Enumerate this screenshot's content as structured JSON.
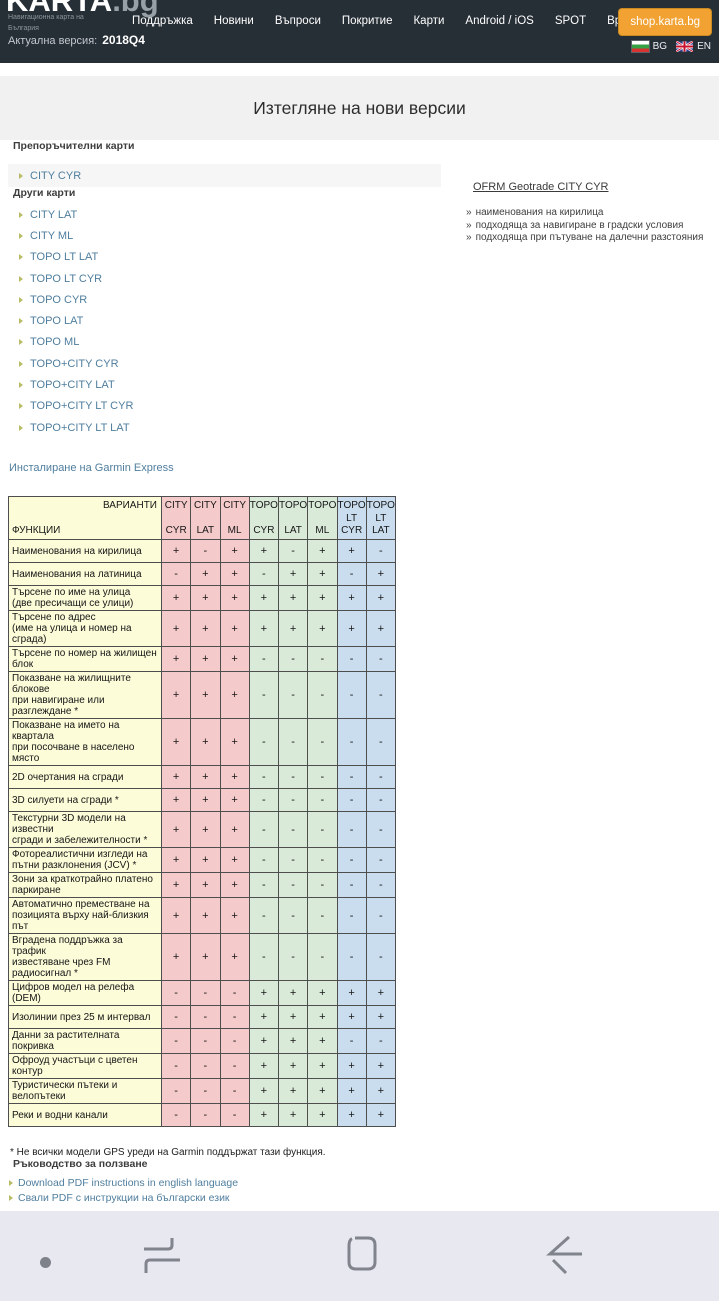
{
  "header": {
    "logo_main": "KARTA",
    "logo_suffix": ".bg",
    "tagline_line1": "Навигационна карта на",
    "tagline_line2": "България",
    "version_label": "Актуална версия:",
    "version_value": "2018Q4",
    "menu": [
      "Поддръжка",
      "Новини",
      "Въпроси",
      "Покритие",
      "Карти",
      "Android / iOS",
      "SPOT",
      "Връзка с нас"
    ],
    "shop_button_label": "shop.karta.bg",
    "languages": [
      {
        "code": "BG",
        "flag": "bulgaria-flag"
      },
      {
        "code": "EN",
        "flag": "uk-flag"
      }
    ]
  },
  "banner": {
    "title": "Изтегляне на нови версии"
  },
  "left_column": {
    "recommended_heading": "Препоръчителни карти",
    "recommended_maps": [
      "CITY CYR"
    ],
    "other_heading": "Други карти",
    "other_maps": [
      "CITY LAT",
      "CITY ML",
      "TOPO LT LAT",
      "TOPO LT CYR",
      "TOPO CYR",
      "TOPO LAT",
      "TOPO ML",
      "TOPO+CITY CYR",
      "TOPO+CITY LAT",
      "TOPO+CITY LT CYR",
      "TOPO+CITY LT LAT"
    ],
    "garmin_link_label": "Инсталиране на Garmin Express"
  },
  "right_column": {
    "selected_map_title": "OFRM Geotrade CITY CYR",
    "bullet_char": "»",
    "features": [
      "наименования на кирилица",
      "подходяща за навигиране в градски условия",
      "подходяща при пътуване на далечни разстояния"
    ]
  },
  "comparison_table": {
    "corner_top_label": "ВАРИАНТИ",
    "corner_bottom_label": "ФУНКЦИИ",
    "columns": [
      {
        "lines": [
          "CITY",
          "CYR"
        ],
        "group": "city"
      },
      {
        "lines": [
          "CITY",
          "LAT"
        ],
        "group": "city"
      },
      {
        "lines": [
          "CITY",
          "ML"
        ],
        "group": "city"
      },
      {
        "lines": [
          "TOPO",
          "CYR"
        ],
        "group": "topo"
      },
      {
        "lines": [
          "TOPO",
          "LAT"
        ],
        "group": "topo"
      },
      {
        "lines": [
          "TOPO",
          "ML"
        ],
        "group": "topo"
      },
      {
        "lines": [
          "TOPO",
          "LT",
          "CYR"
        ],
        "group": "topolt"
      },
      {
        "lines": [
          "TOPO",
          "LT",
          "LAT"
        ],
        "group": "topolt"
      }
    ],
    "rows": [
      {
        "feature": "Наименования на кирилица",
        "values": [
          "+",
          "-",
          "+",
          "+",
          "-",
          "+",
          "+",
          "-"
        ]
      },
      {
        "feature": "Наименования на латиница",
        "values": [
          "-",
          "+",
          "+",
          "-",
          "+",
          "+",
          "-",
          "+"
        ]
      },
      {
        "feature": "Търсене по име на улица\n(две пресичащи се улици)",
        "values": [
          "+",
          "+",
          "+",
          "+",
          "+",
          "+",
          "+",
          "+"
        ]
      },
      {
        "feature": "Търсене по адрес\n(име на улица и номер на сграда)",
        "values": [
          "+",
          "+",
          "+",
          "+",
          "+",
          "+",
          "+",
          "+"
        ]
      },
      {
        "feature": "Търсене по номер на жилищен\nблок",
        "values": [
          "+",
          "+",
          "+",
          "-",
          "-",
          "-",
          "-",
          "-"
        ]
      },
      {
        "feature": "Показване на жилищните блокове\nпри навигиране или разглеждане *",
        "values": [
          "+",
          "+",
          "+",
          "-",
          "-",
          "-",
          "-",
          "-"
        ]
      },
      {
        "feature": "Показване на името на квартала\nпри посочване в населено място",
        "values": [
          "+",
          "+",
          "+",
          "-",
          "-",
          "-",
          "-",
          "-"
        ]
      },
      {
        "feature": "2D очертания на сгради",
        "values": [
          "+",
          "+",
          "+",
          "-",
          "-",
          "-",
          "-",
          "-"
        ]
      },
      {
        "feature": "3D силуети на сгради *",
        "values": [
          "+",
          "+",
          "+",
          "-",
          "-",
          "-",
          "-",
          "-"
        ]
      },
      {
        "feature": "Текстурни 3D модели на известни\nсгради и  забележителности *",
        "values": [
          "+",
          "+",
          "+",
          "-",
          "-",
          "-",
          "-",
          "-"
        ]
      },
      {
        "feature": "Фотореалистични изгледи на\nпътни разклонения (JCV) *",
        "values": [
          "+",
          "+",
          "+",
          "-",
          "-",
          "-",
          "-",
          "-"
        ]
      },
      {
        "feature": "Зони за краткотрайно платено\nпаркиране",
        "values": [
          "+",
          "+",
          "+",
          "-",
          "-",
          "-",
          "-",
          "-"
        ]
      },
      {
        "feature": "Автоматично преместване на\nпозицията върху най-близкия път",
        "values": [
          "+",
          "+",
          "+",
          "-",
          "-",
          "-",
          "-",
          "-"
        ]
      },
      {
        "feature": "Вградена поддръжка за трафик\nизвестяване чрез FM радиосигнал *",
        "values": [
          "+",
          "+",
          "+",
          "-",
          "-",
          "-",
          "-",
          "-"
        ]
      },
      {
        "feature": "Цифров модел на релефа (DEM)",
        "values": [
          "-",
          "-",
          "-",
          "+",
          "+",
          "+",
          "+",
          "+"
        ]
      },
      {
        "feature": "Изолинии през 25 м интервал",
        "values": [
          "-",
          "-",
          "-",
          "+",
          "+",
          "+",
          "+",
          "+"
        ]
      },
      {
        "feature": "Данни за растителната покривка",
        "values": [
          "-",
          "-",
          "-",
          "+",
          "+",
          "+",
          "-",
          "-"
        ]
      },
      {
        "feature": "Офроуд участъци с цветен контур",
        "values": [
          "-",
          "-",
          "-",
          "+",
          "+",
          "+",
          "+",
          "+"
        ]
      },
      {
        "feature": "Туристически пътеки и велопътеки",
        "values": [
          "-",
          "-",
          "-",
          "+",
          "+",
          "+",
          "+",
          "+"
        ]
      },
      {
        "feature": "Реки и водни канали",
        "values": [
          "-",
          "-",
          "-",
          "+",
          "+",
          "+",
          "+",
          "+"
        ]
      }
    ]
  },
  "footnote": "* Не всички модели GPS уреди на Garmin поддържат тази функция.",
  "guide": {
    "heading": "Ръководство за ползване",
    "links": [
      "Download PDF instructions in english language",
      "Свали PDF с инструкции на български език"
    ]
  },
  "navbar_icons": [
    "hide-dot",
    "recents",
    "home",
    "back"
  ],
  "colors": {
    "header_dark": "#262e36",
    "accent_orange": "#f1a233",
    "link_blue": "#4f7e9e",
    "bullet_olive": "#b9bc67",
    "banner_gray": "#f1f1f1",
    "cell_yellow": "#fcfcd9",
    "cell_pink": "#f5caca",
    "cell_green": "#d9ead9",
    "cell_blue": "#c9ddee",
    "navbar_gray": "#e7e8f0"
  }
}
